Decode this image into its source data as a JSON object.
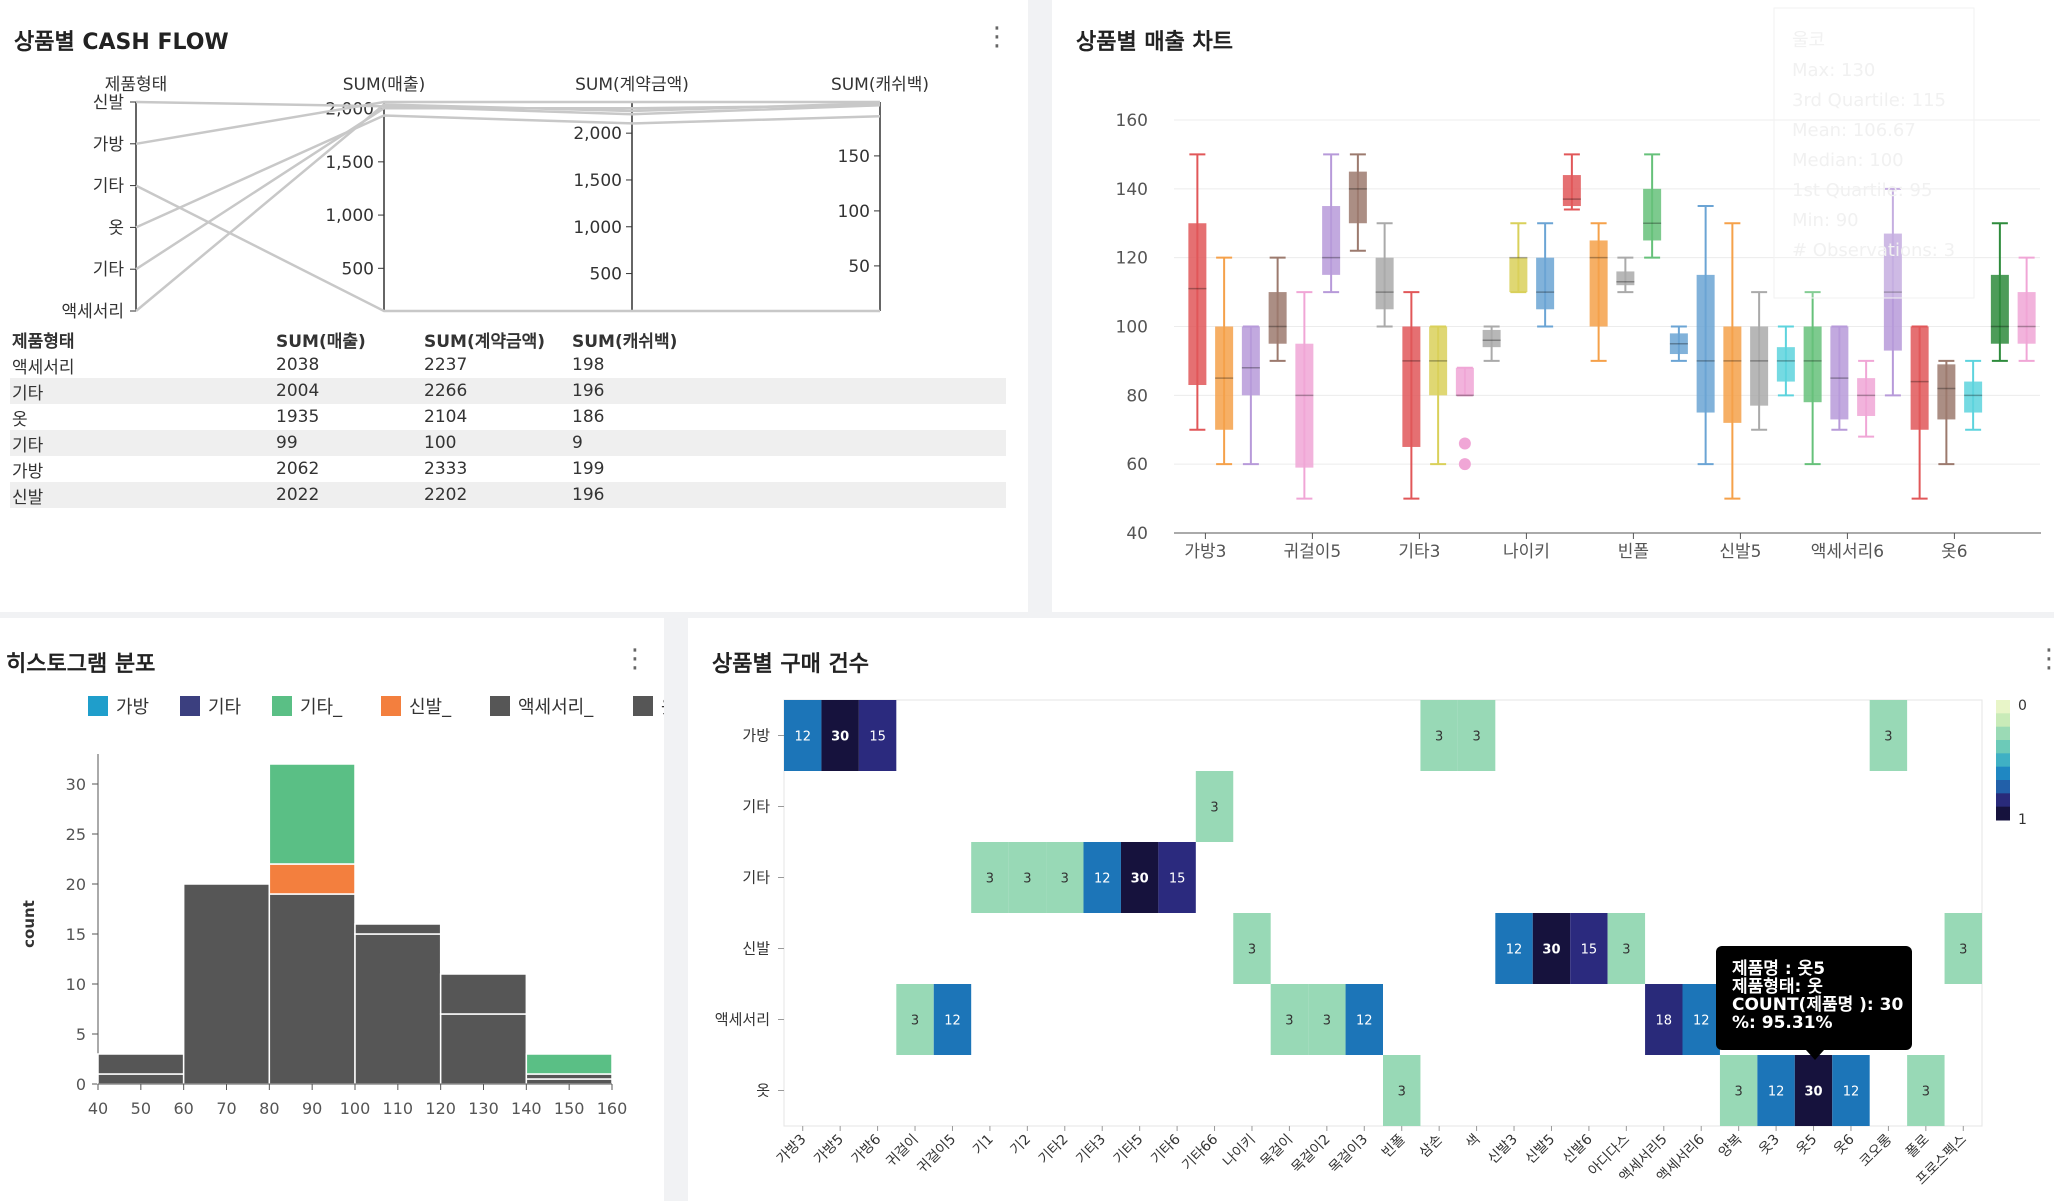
{
  "panels": {
    "cashflow": {
      "title": "상품별 CASH FLOW"
    },
    "boxchart": {
      "title": "상품별 매출 차트"
    },
    "histogram": {
      "title": "히스토그램 분포"
    },
    "heatmap": {
      "title": "상품별 구매 건수"
    }
  },
  "table": {
    "headers": [
      "제품형태",
      "SUM(매출)",
      "SUM(계약금액)",
      "SUM(캐쉬백)"
    ],
    "rows": [
      [
        "액세서리",
        "2038",
        "2237",
        "198"
      ],
      [
        "기타",
        "2004",
        "2266",
        "196"
      ],
      [
        "옷",
        "1935",
        "2104",
        "186"
      ],
      [
        "기타",
        "99",
        "100",
        "9"
      ],
      [
        "가방",
        "2062",
        "2333",
        "199"
      ],
      [
        "신발",
        "2022",
        "2202",
        "196"
      ]
    ]
  },
  "tooltip": {
    "line1": "제품명 : 옷5",
    "line2": "제품형태: 옷",
    "line3": "COUNT(제품명 ): 30",
    "line4": "%: 95.31%"
  },
  "ghost_tooltip": {
    "lines": [
      "울코",
      "Max: 130",
      "3rd Quartile: 115",
      "Mean: 106.67",
      "Median: 100",
      "1st Quartile: 95",
      "Min: 90",
      "# Observations: 3"
    ]
  },
  "chart_data": [
    {
      "type": "parallel",
      "axes": [
        {
          "name": "제품형태",
          "categories": [
            "신발",
            "가방",
            "기타",
            "옷",
            "기타",
            "액세서리"
          ]
        },
        {
          "name": "SUM(매출)",
          "ticks": [
            500,
            1000,
            1500,
            2000
          ],
          "range": [
            99,
            2062
          ]
        },
        {
          "name": "SUM(계약금액)",
          "ticks": [
            500,
            1000,
            1500,
            2000
          ],
          "range": [
            100,
            2333
          ]
        },
        {
          "name": "SUM(캐쉬백)",
          "ticks": [
            50,
            100,
            150
          ],
          "range": [
            9,
            199
          ]
        }
      ],
      "lines": [
        {
          "cat": "신발",
          "values": [
            2022,
            2202,
            196
          ]
        },
        {
          "cat": "가방",
          "values": [
            2062,
            2333,
            199
          ]
        },
        {
          "cat": "기타",
          "values": [
            99,
            100,
            9
          ]
        },
        {
          "cat": "옷",
          "values": [
            1935,
            2104,
            186
          ]
        },
        {
          "cat": "기타",
          "values": [
            2004,
            2266,
            196
          ]
        },
        {
          "cat": "액세서리",
          "values": [
            2038,
            2237,
            198
          ]
        }
      ]
    },
    {
      "type": "box",
      "ylim": [
        40,
        160
      ],
      "yticks": [
        40,
        60,
        80,
        100,
        120,
        140,
        160
      ],
      "xtick_labels": [
        "가방3",
        "귀걸이5",
        "기타3",
        "나이키",
        "빈폴",
        "신발5",
        "액세서리6",
        "옷6"
      ],
      "boxes": [
        {
          "color": "#e15759",
          "min": 70,
          "q1": 83,
          "median": 111,
          "q3": 130,
          "max": 150
        },
        {
          "color": "#f5a14a",
          "min": 60,
          "q1": 70,
          "median": 85,
          "q3": 100,
          "max": 120
        },
        {
          "color": "#b79ad9",
          "min": 60,
          "q1": 80,
          "median": 88,
          "q3": 100,
          "max": 100
        },
        {
          "color": "#9c7a6e",
          "min": 90,
          "q1": 95,
          "median": 100,
          "q3": 110,
          "max": 120
        },
        {
          "color": "#f0a6d6",
          "min": 50,
          "q1": 59,
          "median": 80,
          "q3": 95,
          "max": 110
        },
        {
          "color": "#b79ad9",
          "min": 110,
          "q1": 115,
          "median": 120,
          "q3": 135,
          "max": 150
        },
        {
          "color": "#9c7a6e",
          "min": 122,
          "q1": 130,
          "median": 140,
          "q3": 145,
          "max": 150
        },
        {
          "color": "#aaaaaa",
          "min": 100,
          "q1": 105,
          "median": 110,
          "q3": 120,
          "max": 130
        },
        {
          "color": "#e15759",
          "min": 50,
          "q1": 65,
          "median": 90,
          "q3": 100,
          "max": 110
        },
        {
          "color": "#d9d05a",
          "min": 60,
          "q1": 80,
          "median": 90,
          "q3": 100,
          "max": 100
        },
        {
          "color": "#f0a6d6",
          "min": 80,
          "q1": 80,
          "median": 80,
          "q3": 88,
          "max": 88,
          "outliers": [
            66,
            60
          ]
        },
        {
          "color": "#aaaaaa",
          "min": 90,
          "q1": 94,
          "median": 96,
          "q3": 99,
          "max": 100
        },
        {
          "color": "#d9d05a",
          "min": 110,
          "q1": 110,
          "median": 120,
          "q3": 120,
          "max": 130
        },
        {
          "color": "#6ba4d4",
          "min": 100,
          "q1": 105,
          "median": 110,
          "q3": 120,
          "max": 130
        },
        {
          "color": "#e15759",
          "min": 134,
          "q1": 135,
          "median": 137,
          "q3": 144,
          "max": 150
        },
        {
          "color": "#f5a14a",
          "min": 90,
          "q1": 100,
          "median": 120,
          "q3": 125,
          "max": 130
        },
        {
          "color": "#aaaaaa",
          "min": 110,
          "q1": 112,
          "median": 113,
          "q3": 116,
          "max": 120
        },
        {
          "color": "#66c17a",
          "min": 120,
          "q1": 125,
          "median": 130,
          "q3": 140,
          "max": 150
        },
        {
          "color": "#6ba4d4",
          "min": 90,
          "q1": 92,
          "median": 95,
          "q3": 98,
          "max": 100
        },
        {
          "color": "#6ba4d4",
          "min": 60,
          "q1": 75,
          "median": 90,
          "q3": 115,
          "max": 135
        },
        {
          "color": "#f5a14a",
          "min": 50,
          "q1": 72,
          "median": 90,
          "q3": 100,
          "max": 130
        },
        {
          "color": "#aaaaaa",
          "min": 70,
          "q1": 77,
          "median": 90,
          "q3": 100,
          "max": 110
        },
        {
          "color": "#5dd3dd",
          "min": 80,
          "q1": 84,
          "median": 90,
          "q3": 94,
          "max": 100
        },
        {
          "color": "#66c17a",
          "min": 60,
          "q1": 78,
          "median": 90,
          "q3": 100,
          "max": 110
        },
        {
          "color": "#b79ad9",
          "min": 70,
          "q1": 73,
          "median": 85,
          "q3": 100,
          "max": 100
        },
        {
          "color": "#f0a6d6",
          "min": 68,
          "q1": 74,
          "median": 80,
          "q3": 85,
          "max": 90
        },
        {
          "color": "#b79ad9",
          "min": 80,
          "q1": 93,
          "median": 110,
          "q3": 127,
          "max": 140
        },
        {
          "color": "#e15759",
          "min": 50,
          "q1": 70,
          "median": 84,
          "q3": 100,
          "max": 100
        },
        {
          "color": "#9c7a6e",
          "min": 60,
          "q1": 73,
          "median": 82,
          "q3": 89,
          "max": 90
        },
        {
          "color": "#5dd3dd",
          "min": 70,
          "q1": 75,
          "median": 80,
          "q3": 84,
          "max": 90
        },
        {
          "color": "#2e8b3c",
          "min": 90,
          "q1": 95,
          "median": 100,
          "q3": 115,
          "max": 130
        },
        {
          "color": "#f0a6d6",
          "min": 90,
          "q1": 95,
          "median": 100,
          "q3": 110,
          "max": 120
        }
      ]
    },
    {
      "type": "histogram",
      "ylabel": "count",
      "xticks": [
        40,
        50,
        60,
        70,
        80,
        90,
        100,
        110,
        120,
        130,
        140,
        150,
        160
      ],
      "yticks": [
        0,
        5,
        10,
        15,
        20,
        25,
        30
      ],
      "ylim": [
        0,
        32
      ],
      "legend": [
        {
          "name": "가방",
          "color": "#1f9ecb"
        },
        {
          "name": "기타",
          "color": "#3b3f7f"
        },
        {
          "name": "기타_",
          "color": "#5abf85"
        },
        {
          "name": "신발_",
          "color": "#f37f3e"
        },
        {
          "name": "액세서리_",
          "color": "#565656"
        },
        {
          "name": "옷",
          "color": "#565656"
        }
      ],
      "bins": [
        {
          "x0": 40,
          "x1": 60,
          "segments": [
            {
              "color": "#565656",
              "value": 1
            },
            {
              "color": "#565656",
              "value": 2
            }
          ]
        },
        {
          "x0": 60,
          "x1": 80,
          "segments": [
            {
              "color": "#565656",
              "value": 20
            }
          ]
        },
        {
          "x0": 80,
          "x1": 100,
          "segments": [
            {
              "color": "#565656",
              "value": 19
            },
            {
              "color": "#f37f3e",
              "value": 3
            },
            {
              "color": "#5abf85",
              "value": 10
            }
          ]
        },
        {
          "x0": 100,
          "x1": 120,
          "segments": [
            {
              "color": "#565656",
              "value": 15
            },
            {
              "color": "#565656",
              "value": 1
            }
          ]
        },
        {
          "x0": 120,
          "x1": 140,
          "segments": [
            {
              "color": "#565656",
              "value": 7
            },
            {
              "color": "#565656",
              "value": 4
            }
          ]
        },
        {
          "x0": 140,
          "x1": 160,
          "segments": [
            {
              "color": "#565656",
              "value": 0.5
            },
            {
              "color": "#565656",
              "value": 0.5
            },
            {
              "color": "#5abf85",
              "value": 2
            }
          ]
        }
      ]
    },
    {
      "type": "heatmap",
      "rows": [
        "가방",
        "기타",
        "기타",
        "신발",
        "액세서리",
        "옷"
      ],
      "columns": [
        "가방3",
        "가방5",
        "가방6",
        "귀걸이",
        "귀걸이5",
        "기1",
        "기2",
        "기타2",
        "기타3",
        "기타5",
        "기타6",
        "기타66",
        "나이키",
        "목걸이",
        "목걸이2",
        "목걸이3",
        "빈폴",
        "삼손",
        "색",
        "신발3",
        "신발5",
        "신발6",
        "아디다스",
        "액세서리5",
        "액세서리6",
        "양복",
        "옷3",
        "옷5",
        "옷6",
        "코오롱",
        "폴로",
        "프로스펙스"
      ],
      "legend": {
        "top": "0",
        "bottom": "1",
        "colors": [
          "#e8f5c8",
          "#c9ebb8",
          "#9bdab5",
          "#6ccab8",
          "#3fb0c4",
          "#1f87c2",
          "#2260a9",
          "#292a7a",
          "#16123d"
        ]
      },
      "cells": [
        {
          "r": 0,
          "c": 0,
          "v": 12
        },
        {
          "r": 0,
          "c": 1,
          "v": 30
        },
        {
          "r": 0,
          "c": 2,
          "v": 15
        },
        {
          "r": 0,
          "c": 17,
          "v": 3
        },
        {
          "r": 0,
          "c": 18,
          "v": 3
        },
        {
          "r": 0,
          "c": 29,
          "v": 3
        },
        {
          "r": 1,
          "c": 11,
          "v": 3
        },
        {
          "r": 2,
          "c": 5,
          "v": 3
        },
        {
          "r": 2,
          "c": 6,
          "v": 3
        },
        {
          "r": 2,
          "c": 7,
          "v": 3
        },
        {
          "r": 2,
          "c": 8,
          "v": 12
        },
        {
          "r": 2,
          "c": 9,
          "v": 30
        },
        {
          "r": 2,
          "c": 10,
          "v": 15
        },
        {
          "r": 3,
          "c": 12,
          "v": 3
        },
        {
          "r": 3,
          "c": 19,
          "v": 12
        },
        {
          "r": 3,
          "c": 20,
          "v": 30
        },
        {
          "r": 3,
          "c": 21,
          "v": 15
        },
        {
          "r": 3,
          "c": 22,
          "v": 3
        },
        {
          "r": 3,
          "c": 31,
          "v": 3
        },
        {
          "r": 4,
          "c": 3,
          "v": 3
        },
        {
          "r": 4,
          "c": 4,
          "v": 12
        },
        {
          "r": 4,
          "c": 13,
          "v": 3
        },
        {
          "r": 4,
          "c": 14,
          "v": 3
        },
        {
          "r": 4,
          "c": 15,
          "v": 12
        },
        {
          "r": 4,
          "c": 23,
          "v": 18
        },
        {
          "r": 4,
          "c": 24,
          "v": 12
        },
        {
          "r": 5,
          "c": 16,
          "v": 3
        },
        {
          "r": 5,
          "c": 25,
          "v": 3
        },
        {
          "r": 5,
          "c": 26,
          "v": 12
        },
        {
          "r": 5,
          "c": 27,
          "v": 30
        },
        {
          "r": 5,
          "c": 28,
          "v": 12
        },
        {
          "r": 5,
          "c": 30,
          "v": 3
        }
      ]
    }
  ]
}
